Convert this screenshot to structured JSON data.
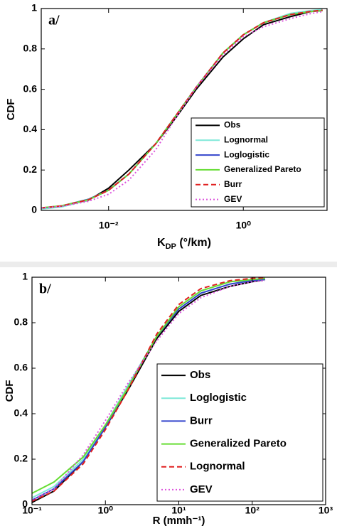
{
  "chart_data": [
    {
      "type": "line",
      "panel_label": "a/",
      "ylabel": "CDF",
      "xlabel": [
        "K",
        "DP",
        " (°/km)"
      ],
      "xscale": "log",
      "xlim": [
        0.001,
        17.5
      ],
      "xticks": [
        {
          "value": 0.01,
          "label": "10⁻²"
        },
        {
          "value": 1,
          "label": "10⁰"
        }
      ],
      "ylim": [
        0,
        1
      ],
      "yticks": [
        0,
        0.2,
        0.4,
        0.6,
        0.8,
        1
      ],
      "legend": "lower right",
      "x": [
        0.001,
        0.002,
        0.005,
        0.01,
        0.02,
        0.05,
        0.1,
        0.2,
        0.5,
        1,
        2,
        5,
        10,
        15
      ],
      "series": [
        {
          "name": "Obs",
          "color": "#000000",
          "linestyle": "solid",
          "values": [
            0.01,
            0.02,
            0.05,
            0.11,
            0.2,
            0.33,
            0.46,
            0.6,
            0.76,
            0.85,
            0.92,
            0.96,
            0.985,
            0.99
          ]
        },
        {
          "name": "Lognormal",
          "color": "#7fe8d8",
          "linestyle": "solid",
          "values": [
            0.007,
            0.017,
            0.051,
            0.1,
            0.18,
            0.33,
            0.47,
            0.61,
            0.78,
            0.87,
            0.93,
            0.976,
            0.99,
            0.995
          ]
        },
        {
          "name": "Loglogistic",
          "color": "#3344cc",
          "linestyle": "solid",
          "values": [
            0.012,
            0.022,
            0.055,
            0.1,
            0.18,
            0.33,
            0.47,
            0.61,
            0.78,
            0.87,
            0.93,
            0.97,
            0.985,
            0.99
          ]
        },
        {
          "name": "Generalized Pareto",
          "color": "#66dd33",
          "linestyle": "solid",
          "values": [
            0.013,
            0.023,
            0.053,
            0.1,
            0.18,
            0.33,
            0.47,
            0.61,
            0.78,
            0.87,
            0.93,
            0.97,
            0.985,
            0.99
          ]
        },
        {
          "name": "Burr",
          "color": "#e02020",
          "linestyle": "dashed",
          "values": [
            0.012,
            0.022,
            0.052,
            0.1,
            0.18,
            0.33,
            0.47,
            0.61,
            0.78,
            0.87,
            0.93,
            0.97,
            0.986,
            0.992
          ]
        },
        {
          "name": "GEV",
          "color": "#dd55dd",
          "linestyle": "dotted",
          "values": [
            0.012,
            0.02,
            0.045,
            0.08,
            0.15,
            0.3,
            0.46,
            0.61,
            0.77,
            0.86,
            0.91,
            0.95,
            0.975,
            0.985
          ]
        }
      ]
    },
    {
      "type": "line",
      "panel_label": "b/",
      "ylabel": "CDF",
      "xlabel": "R (mmh⁻¹)",
      "xscale": "log",
      "xlim": [
        0.1,
        1000
      ],
      "xticks": [
        {
          "value": 0.1,
          "label": "10⁻¹"
        },
        {
          "value": 1,
          "label": "10⁰"
        },
        {
          "value": 10,
          "label": "10¹"
        },
        {
          "value": 100,
          "label": "10²"
        },
        {
          "value": 1000,
          "label": "10³"
        }
      ],
      "ylim": [
        0,
        1
      ],
      "yticks": [
        0,
        0.2,
        0.4,
        0.6,
        0.8,
        1
      ],
      "legend": "lower right",
      "x": [
        0.1,
        0.2,
        0.5,
        1,
        2,
        5,
        10,
        20,
        50,
        100,
        150
      ],
      "series": [
        {
          "name": "Obs",
          "color": "#000000",
          "linestyle": "solid",
          "values": [
            0.01,
            0.06,
            0.19,
            0.34,
            0.5,
            0.73,
            0.85,
            0.92,
            0.96,
            0.98,
            0.99
          ]
        },
        {
          "name": "Loglogistic",
          "color": "#7fe8d8",
          "linestyle": "solid",
          "values": [
            0.03,
            0.08,
            0.2,
            0.35,
            0.52,
            0.74,
            0.86,
            0.93,
            0.97,
            0.985,
            0.99
          ]
        },
        {
          "name": "Burr",
          "color": "#3344cc",
          "linestyle": "solid",
          "values": [
            0.02,
            0.07,
            0.19,
            0.34,
            0.51,
            0.74,
            0.86,
            0.93,
            0.97,
            0.985,
            0.99
          ]
        },
        {
          "name": "Generalized Pareto",
          "color": "#66dd33",
          "linestyle": "solid",
          "values": [
            0.05,
            0.1,
            0.21,
            0.35,
            0.51,
            0.74,
            0.87,
            0.94,
            0.98,
            0.99,
            0.995
          ]
        },
        {
          "name": "Lognormal",
          "color": "#e02020",
          "linestyle": "dashed",
          "values": [
            0.015,
            0.06,
            0.18,
            0.33,
            0.5,
            0.75,
            0.88,
            0.95,
            0.985,
            0.995,
            0.998
          ]
        },
        {
          "name": "GEV",
          "color": "#dd55dd",
          "linestyle": "dotted",
          "values": [
            0.02,
            0.07,
            0.22,
            0.37,
            0.53,
            0.72,
            0.84,
            0.91,
            0.96,
            0.98,
            0.985
          ]
        }
      ]
    }
  ]
}
